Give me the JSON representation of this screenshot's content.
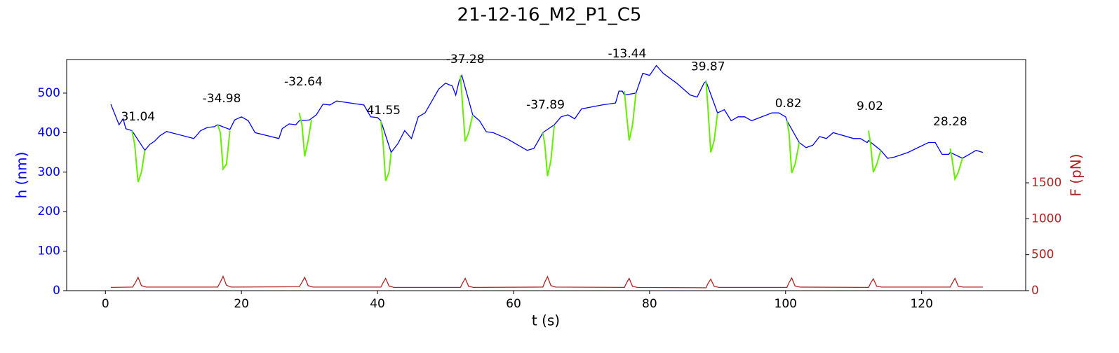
{
  "chart_data": {
    "type": "line",
    "title": "21-12-16_M2_P1_C5",
    "xlabel": "t (s)",
    "ylabel": "h (nm)",
    "y2label": "F (pN)",
    "xlim": [
      -5.7,
      135.3
    ],
    "ylim": [
      0,
      585
    ],
    "y2lim": [
      0,
      3214
    ],
    "xticks": [
      0,
      20,
      40,
      60,
      80,
      100,
      120
    ],
    "yticks": [
      0,
      100,
      200,
      300,
      400,
      500
    ],
    "y2ticks": [
      0,
      500,
      1000,
      1500
    ],
    "ycolor": "#0000ff",
    "y2color": "#b22222",
    "series": [
      {
        "color": "#0000ff",
        "axis": "y",
        "x": [
          0.8,
          2,
          2.6,
          3,
          3.9,
          5.8,
          6.5,
          7.2,
          8,
          9,
          13,
          14,
          15,
          16,
          16.5,
          18.3,
          19,
          20,
          21,
          22,
          25.5,
          26,
          27,
          28,
          28.5,
          30,
          31,
          32,
          33,
          34,
          38,
          39,
          40,
          40.5,
          42,
          43,
          44,
          45,
          46,
          47,
          49,
          50,
          51,
          51.5,
          52,
          52.4,
          54,
          55,
          56,
          57,
          59,
          61,
          62,
          63,
          64,
          64.3,
          66,
          67,
          68,
          69,
          70,
          73,
          75,
          75.5,
          76,
          76.3,
          78,
          79,
          80,
          81,
          82,
          84,
          86,
          87,
          88,
          88.3,
          90,
          91,
          92,
          93,
          94,
          95,
          98,
          99,
          100,
          100.2,
          102,
          103,
          104,
          105,
          106,
          107,
          110,
          111,
          112,
          112.2,
          114,
          115,
          116,
          118,
          121,
          122,
          123,
          124,
          124.2,
          126,
          127,
          128,
          129
        ],
        "values": [
          472,
          420,
          435,
          410,
          405,
          355,
          370,
          378,
          392,
          403,
          385,
          405,
          413,
          415,
          420,
          408,
          432,
          440,
          430,
          400,
          385,
          410,
          422,
          420,
          430,
          432,
          445,
          472,
          470,
          480,
          470,
          440,
          438,
          430,
          350,
          372,
          405,
          385,
          440,
          450,
          510,
          525,
          518,
          495,
          530,
          545,
          445,
          430,
          402,
          400,
          385,
          365,
          355,
          360,
          390,
          400,
          420,
          440,
          445,
          435,
          460,
          470,
          475,
          505,
          505,
          495,
          500,
          550,
          545,
          570,
          550,
          525,
          495,
          490,
          525,
          530,
          450,
          458,
          430,
          440,
          440,
          430,
          450,
          450,
          440,
          430,
          375,
          362,
          368,
          390,
          385,
          400,
          385,
          385,
          375,
          380,
          355,
          335,
          338,
          350,
          375,
          375,
          345,
          345,
          350,
          335,
          345,
          355,
          350
        ]
      },
      {
        "color": "#66ee00",
        "axis": "y",
        "x": [
          3.9,
          4.3,
          4.8,
          5.3,
          5.8,
          null,
          16.5,
          16.9,
          17.3,
          17.8,
          18.3,
          null,
          28.5,
          28.9,
          29.3,
          29.8,
          30.3,
          null,
          40.5,
          40.8,
          41.2,
          41.7,
          42,
          null,
          52.2,
          52.5,
          52.9,
          53.4,
          54,
          null,
          64.3,
          64.6,
          65,
          65.5,
          66,
          null,
          76.3,
          76.6,
          77,
          77.5,
          78,
          null,
          88.3,
          88.6,
          89,
          89.5,
          90,
          null,
          100.2,
          100.5,
          100.9,
          101.4,
          102,
          null,
          112.2,
          112.5,
          112.9,
          113.4,
          114,
          null,
          124.2,
          124.5,
          124.9,
          125.4,
          126
        ],
        "values": [
          405,
          370,
          275,
          300,
          355,
          null,
          420,
          400,
          308,
          320,
          405,
          null,
          450,
          420,
          340,
          380,
          432,
          null,
          430,
          380,
          278,
          300,
          350,
          null,
          545,
          470,
          378,
          400,
          445,
          null,
          400,
          370,
          290,
          330,
          420,
          null,
          505,
          450,
          380,
          420,
          500,
          null,
          530,
          460,
          350,
          380,
          450,
          null,
          430,
          400,
          298,
          320,
          375,
          null,
          405,
          370,
          300,
          320,
          355,
          null,
          360,
          330,
          283,
          300,
          335
        ]
      },
      {
        "color": "#b22222",
        "axis": "y2",
        "x": [
          0.8,
          4,
          4.4,
          4.8,
          5.3,
          6,
          16.5,
          16.9,
          17.3,
          17.8,
          18.5,
          28.5,
          28.9,
          29.3,
          29.8,
          30.5,
          40.5,
          40.8,
          41.2,
          41.7,
          42.4,
          52.2,
          52.5,
          52.9,
          53.4,
          54.1,
          64.3,
          64.6,
          65,
          65.5,
          66.2,
          76.3,
          76.6,
          77,
          77.5,
          78.2,
          88.3,
          88.6,
          89,
          89.5,
          90.2,
          100.2,
          100.5,
          100.9,
          101.4,
          102.1,
          112.2,
          112.5,
          112.9,
          113.4,
          114.1,
          124.2,
          124.5,
          124.9,
          125.4,
          126.1,
          129
        ],
        "values": [
          45,
          50,
          110,
          185,
          70,
          50,
          50,
          120,
          200,
          75,
          50,
          55,
          115,
          185,
          70,
          50,
          50,
          105,
          170,
          65,
          45,
          45,
          105,
          170,
          60,
          45,
          50,
          120,
          195,
          70,
          50,
          45,
          105,
          170,
          60,
          45,
          40,
          100,
          160,
          60,
          45,
          45,
          110,
          175,
          65,
          50,
          45,
          105,
          165,
          60,
          50,
          50,
          105,
          170,
          60,
          50,
          50
        ]
      }
    ],
    "annotations": [
      {
        "text": "31.04",
        "x": 4.8,
        "y": 440
      },
      {
        "text": "-34.98",
        "x": 17.1,
        "y": 486
      },
      {
        "text": "-32.64",
        "x": 29.1,
        "y": 528
      },
      {
        "text": "41.55",
        "x": 40.9,
        "y": 456
      },
      {
        "text": "-37.28",
        "x": 52.9,
        "y": 585
      },
      {
        "text": "-37.89",
        "x": 64.7,
        "y": 470
      },
      {
        "text": "-13.44",
        "x": 76.7,
        "y": 599
      },
      {
        "text": "39.87",
        "x": 88.6,
        "y": 566
      },
      {
        "text": "0.82",
        "x": 100.4,
        "y": 473
      },
      {
        "text": "9.02",
        "x": 112.4,
        "y": 466
      },
      {
        "text": "28.28",
        "x": 124.2,
        "y": 427
      }
    ]
  }
}
